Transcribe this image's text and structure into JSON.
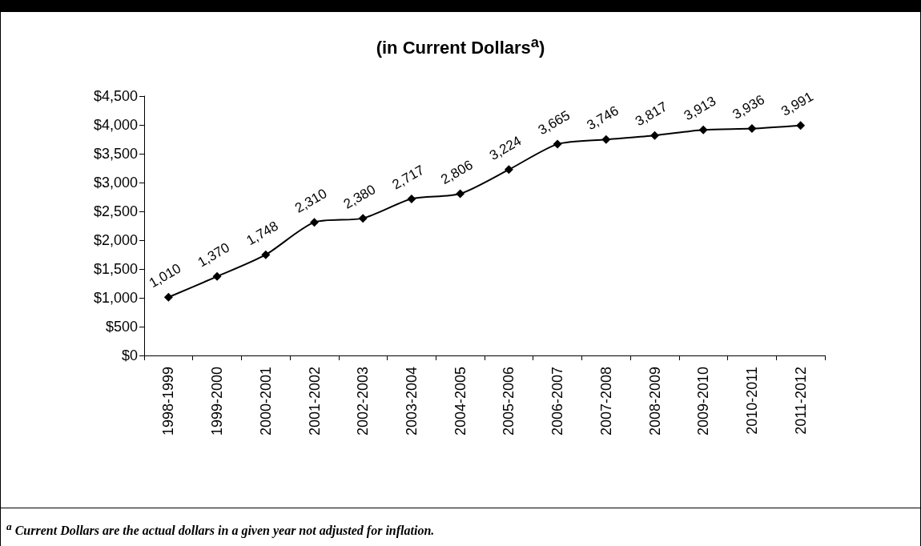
{
  "chart_data": {
    "type": "line",
    "title": "(in Current Dollars$^{a}$)",
    "categories": [
      "1998-1999",
      "1999-2000",
      "2000-2001",
      "2001-2002",
      "2002-2003",
      "2003-2004",
      "2004-2005",
      "2005-2006",
      "2006-2007",
      "2007-2008",
      "2008-2009",
      "2009-2010",
      "2010-2011",
      "2011-2012"
    ],
    "series": [
      {
        "color": "#000000",
        "values": [
          1010,
          1370,
          1748,
          2310,
          2380,
          2717,
          2806,
          3224,
          3665,
          3746,
          3817,
          3913,
          3936,
          3991
        ],
        "value_labels": [
          "1,010",
          "1,370",
          "1,748",
          "2,310",
          "2,380",
          "2,717",
          "2,806",
          "3,224",
          "3,665",
          "3,746",
          "3,817",
          "3,913",
          "3,936",
          "3,991"
        ]
      }
    ],
    "ylim": [
      0,
      4500
    ],
    "yticks": [
      {
        "value": 0,
        "label": "$0"
      },
      {
        "value": 500,
        "label": "$500"
      },
      {
        "value": 1000,
        "label": "$1,000"
      },
      {
        "value": 1500,
        "label": "$1,500"
      },
      {
        "value": 2000,
        "label": "$2,000"
      },
      {
        "value": 2500,
        "label": "$2,500"
      },
      {
        "value": 3000,
        "label": "$3,000"
      },
      {
        "value": 3500,
        "label": "$3,500"
      },
      {
        "value": 4000,
        "label": "$4,000"
      },
      {
        "value": 4500,
        "label": "$4,500"
      }
    ],
    "grid": false,
    "marker": "diamond",
    "line_style": "solid",
    "annotations": [
      "$^{a}$ Current Dollars are the actual dollars in a given year not adjusted for inflation."
    ]
  }
}
